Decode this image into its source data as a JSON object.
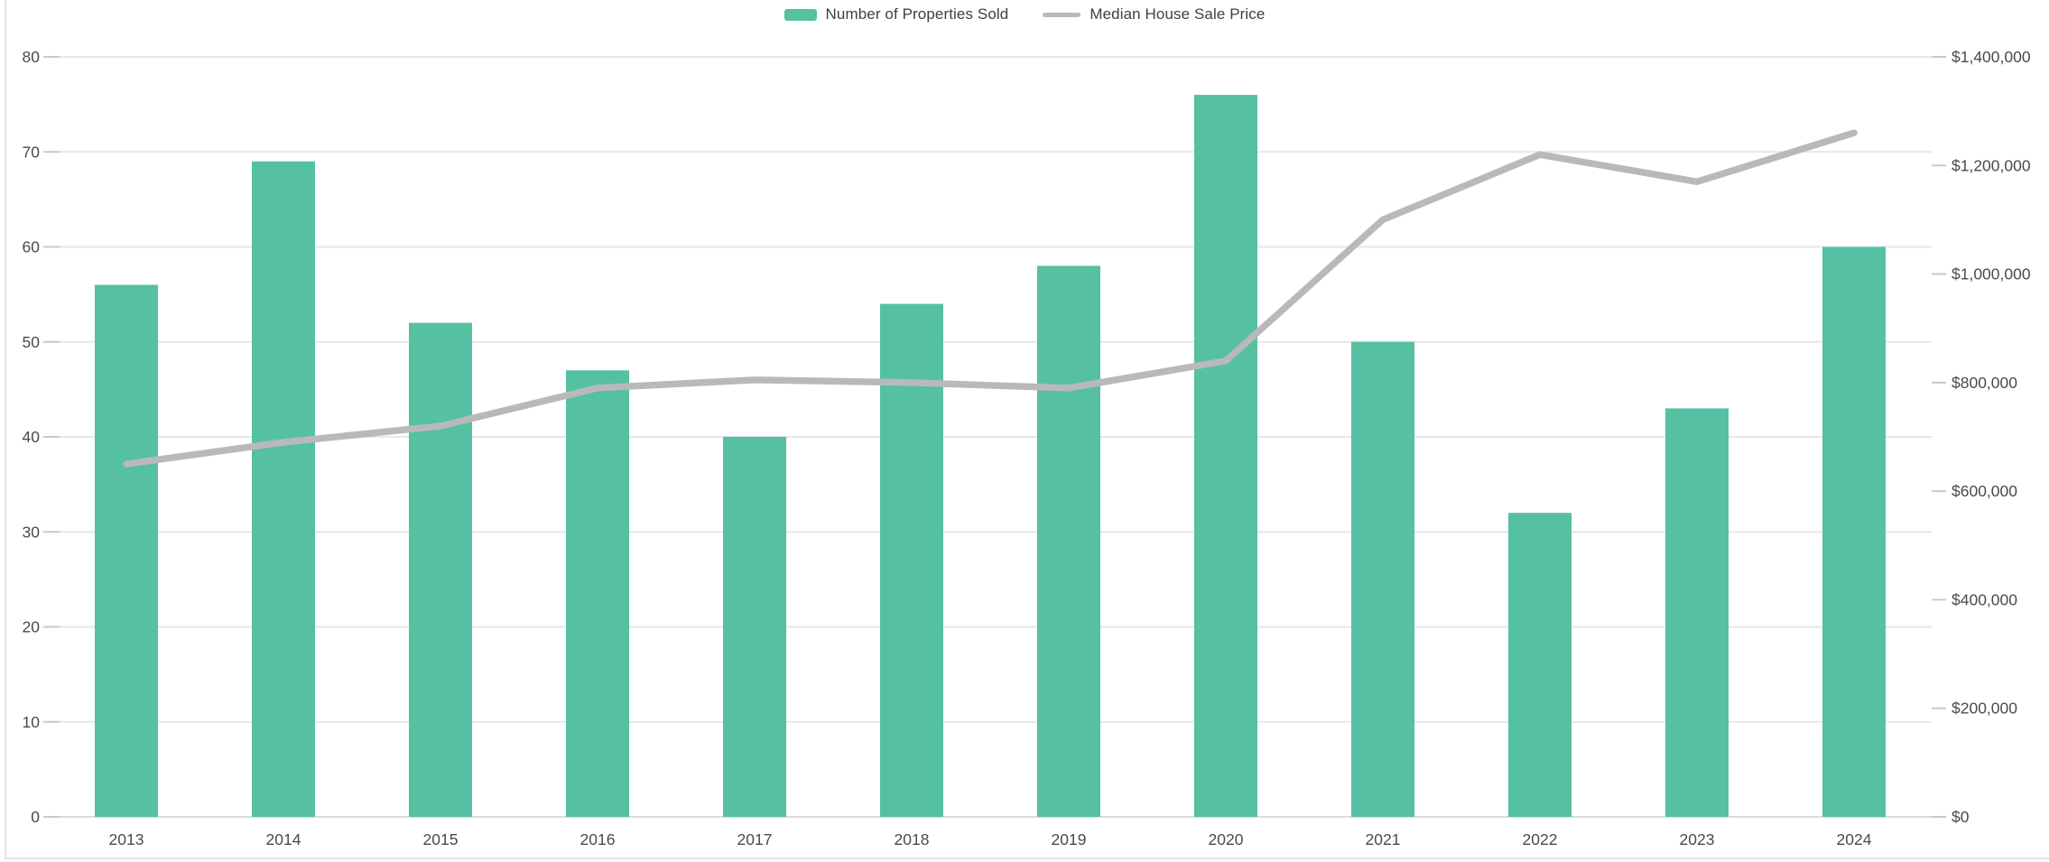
{
  "colors": {
    "bar": "#55c0a2",
    "line": "#b9b9b9",
    "grid": "#e7e7e7",
    "axis_line": "#dcdcdc",
    "tick": "#c9c9c9",
    "axis_label": "#4a4a4a",
    "legend_text": "#3f3f3f",
    "border": "#e3e3e3"
  },
  "chart_data": {
    "type": "bar+line combo",
    "title": "",
    "categories": [
      "2013",
      "2014",
      "2015",
      "2016",
      "2017",
      "2018",
      "2019",
      "2020",
      "2021",
      "2022",
      "2023",
      "2024"
    ],
    "series": [
      {
        "name": "Number of Properties Sold",
        "type": "bar",
        "axis": "left",
        "color": "#55c0a2",
        "values": [
          56,
          69,
          52,
          47,
          40,
          54,
          58,
          76,
          50,
          32,
          43,
          60
        ]
      },
      {
        "name": "Median House Sale Price",
        "type": "line",
        "axis": "right",
        "color": "#b9b9b9",
        "values": [
          650000,
          690000,
          720000,
          790000,
          805000,
          800000,
          790000,
          840000,
          1100000,
          1220000,
          1170000,
          1260000
        ]
      }
    ],
    "y_left": {
      "min": 0,
      "max": 80,
      "step": 10,
      "tick_labels": [
        "0",
        "10",
        "20",
        "30",
        "40",
        "50",
        "60",
        "70",
        "80"
      ]
    },
    "y_right": {
      "min": 0,
      "max": 1400000,
      "step": 200000,
      "tick_labels": [
        "$0",
        "$200,000",
        "$400,000",
        "$600,000",
        "$800,000",
        "$1,000,000",
        "$1,200,000",
        "$1,400,000"
      ]
    },
    "grid": true,
    "legend_position": "top-center"
  }
}
